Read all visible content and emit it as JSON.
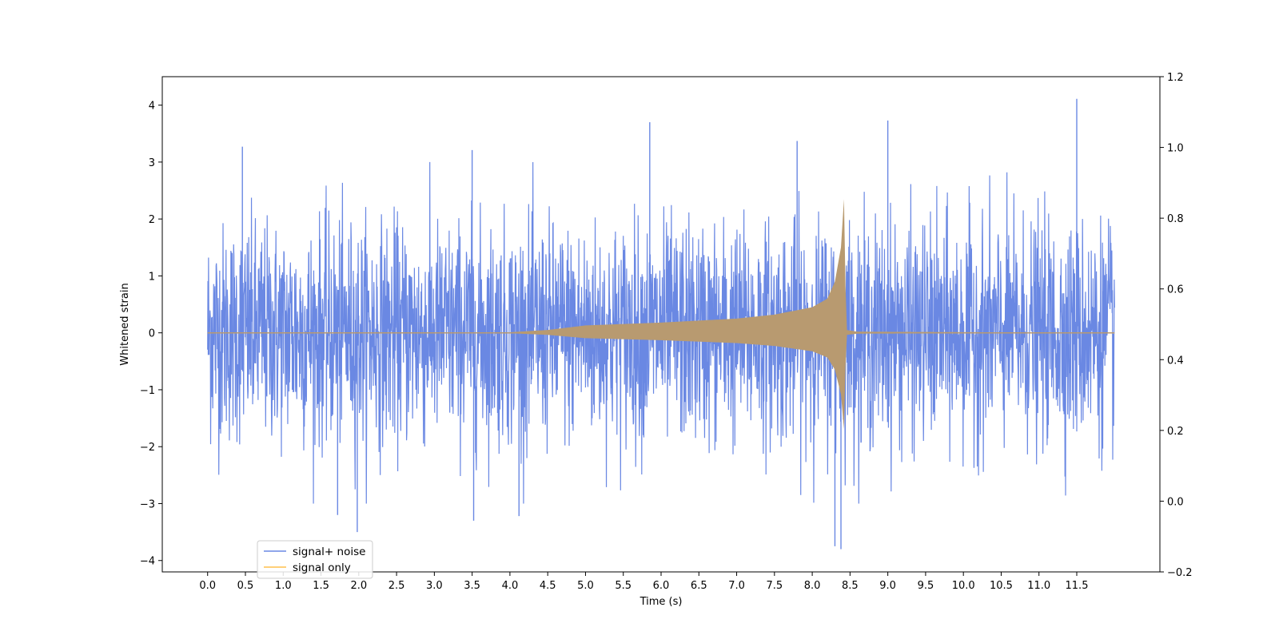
{
  "chart_data": {
    "type": "line",
    "title": "",
    "xlabel": "Time (s)",
    "ylabel": "Whitened strain",
    "xlim": [
      -0.6,
      12.6
    ],
    "ylim": [
      -4.2,
      4.5
    ],
    "y2lim": [
      -0.2,
      1.2
    ],
    "x_ticks": [
      "0.0",
      "0.5",
      "1.0",
      "1.5",
      "2.0",
      "2.5",
      "3.0",
      "3.5",
      "4.0",
      "4.5",
      "5.0",
      "5.5",
      "6.0",
      "6.5",
      "7.0",
      "7.5",
      "8.0",
      "8.5",
      "9.0",
      "9.5",
      "10.0",
      "10.5",
      "11.0",
      "11.5"
    ],
    "y_ticks": [
      "4",
      "3",
      "2",
      "1",
      "0",
      "−1",
      "−2",
      "−3",
      "−4"
    ],
    "y2_ticks": [
      "1.2",
      "1.0",
      "0.8",
      "0.6",
      "0.4",
      "0.2",
      "0.0",
      "−0.2"
    ],
    "grid": false,
    "legend_position": "lower-left",
    "series": [
      {
        "name": "signal+ noise",
        "color": "#6a88e3",
        "t_range": [
          0.0,
          12.0
        ],
        "noise_std": 0.95,
        "peaks": [
          [
            0.46,
            3.27
          ],
          [
            1.98,
            -3.5
          ],
          [
            3.5,
            3.21
          ],
          [
            3.52,
            -3.3
          ],
          [
            5.85,
            3.7
          ],
          [
            9.0,
            3.73
          ],
          [
            8.38,
            -3.8
          ],
          [
            8.3,
            -3.75
          ],
          [
            11.5,
            4.11
          ],
          [
            1.72,
            -3.2
          ],
          [
            4.12,
            -3.22
          ],
          [
            7.8,
            3.37
          ]
        ]
      },
      {
        "name": "signal only",
        "color": "#ffc04d",
        "t_range": [
          0.0,
          12.0
        ],
        "envelope": [
          [
            0.0,
            0.0
          ],
          [
            4.0,
            0.01
          ],
          [
            4.5,
            0.05
          ],
          [
            5.0,
            0.13
          ],
          [
            6.0,
            0.18
          ],
          [
            7.0,
            0.25
          ],
          [
            7.5,
            0.32
          ],
          [
            8.0,
            0.45
          ],
          [
            8.2,
            0.6
          ],
          [
            8.3,
            0.9
          ],
          [
            8.38,
            1.5
          ],
          [
            8.42,
            2.35
          ],
          [
            8.45,
            0.05
          ],
          [
            8.6,
            0.02
          ],
          [
            12.0,
            0.0
          ]
        ]
      }
    ],
    "overlap_color": "#b89a70"
  }
}
